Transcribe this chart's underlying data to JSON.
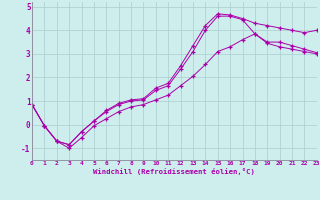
{
  "xlabel": "Windchill (Refroidissement éolien,°C)",
  "background_color": "#ceeeed",
  "line_color": "#aa00aa",
  "grid_color": "#aacccc",
  "xlim": [
    0,
    23
  ],
  "ylim": [
    -1.5,
    5.2
  ],
  "xticks": [
    0,
    1,
    2,
    3,
    4,
    5,
    6,
    7,
    8,
    9,
    10,
    11,
    12,
    13,
    14,
    15,
    16,
    17,
    18,
    19,
    20,
    21,
    22,
    23
  ],
  "yticks": [
    -1,
    0,
    1,
    2,
    3,
    4,
    5
  ],
  "line1_x": [
    0,
    1,
    2,
    3,
    4,
    5,
    6,
    7,
    8,
    9,
    10,
    11,
    12,
    13,
    14,
    15,
    16,
    17,
    18,
    19,
    20,
    21,
    22,
    23
  ],
  "line1_y": [
    0.85,
    -0.05,
    -0.7,
    -0.85,
    -0.3,
    0.15,
    0.6,
    0.9,
    1.05,
    1.1,
    1.55,
    1.75,
    2.5,
    3.35,
    4.2,
    4.7,
    4.65,
    4.5,
    4.3,
    4.2,
    4.1,
    4.0,
    3.9,
    4.0
  ],
  "line2_x": [
    0,
    1,
    2,
    3,
    4,
    5,
    6,
    7,
    8,
    9,
    10,
    11,
    12,
    13,
    14,
    15,
    16,
    17,
    18,
    19,
    20,
    21,
    22,
    23
  ],
  "line2_y": [
    0.85,
    -0.05,
    -0.7,
    -0.85,
    -0.3,
    0.15,
    0.55,
    0.85,
    1.0,
    1.05,
    1.45,
    1.65,
    2.35,
    3.1,
    4.0,
    4.6,
    4.6,
    4.45,
    3.85,
    3.45,
    3.3,
    3.2,
    3.1,
    3.0
  ],
  "line3_x": [
    0,
    1,
    2,
    3,
    4,
    5,
    6,
    7,
    8,
    9,
    10,
    11,
    12,
    13,
    14,
    15,
    16,
    17,
    18,
    19,
    20,
    21,
    22,
    23
  ],
  "line3_y": [
    0.85,
    -0.05,
    -0.7,
    -1.0,
    -0.55,
    -0.05,
    0.25,
    0.55,
    0.75,
    0.85,
    1.05,
    1.25,
    1.65,
    2.05,
    2.55,
    3.1,
    3.3,
    3.6,
    3.85,
    3.5,
    3.5,
    3.35,
    3.2,
    3.05
  ]
}
